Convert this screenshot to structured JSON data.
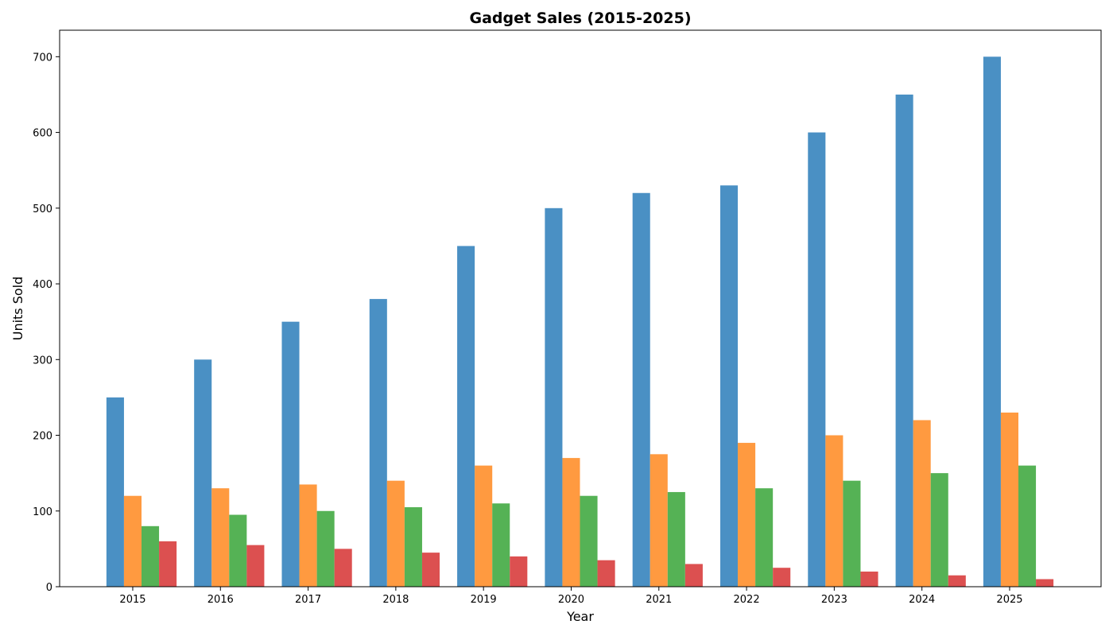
{
  "chart_data": {
    "type": "bar",
    "title": "Gadget Sales (2015-2025)",
    "xlabel": "Year",
    "ylabel": "Units Sold",
    "categories": [
      "2015",
      "2016",
      "2017",
      "2018",
      "2019",
      "2020",
      "2021",
      "2022",
      "2023",
      "2024",
      "2025"
    ],
    "ylim": [
      0,
      735
    ],
    "yticks": [
      0,
      100,
      200,
      300,
      400,
      500,
      600,
      700
    ],
    "grid": false,
    "legend": "none",
    "series": [
      {
        "color": "#4a90c4",
        "values": [
          250,
          300,
          350,
          380,
          450,
          500,
          520,
          530,
          600,
          650,
          700
        ]
      },
      {
        "color": "#ff9a40",
        "values": [
          120,
          130,
          135,
          140,
          160,
          170,
          175,
          190,
          200,
          220,
          230
        ]
      },
      {
        "color": "#55b255",
        "values": [
          80,
          95,
          100,
          105,
          110,
          120,
          125,
          130,
          140,
          150,
          160
        ]
      },
      {
        "color": "#dc5050",
        "values": [
          60,
          55,
          50,
          45,
          40,
          35,
          30,
          25,
          20,
          15,
          10
        ]
      }
    ]
  }
}
